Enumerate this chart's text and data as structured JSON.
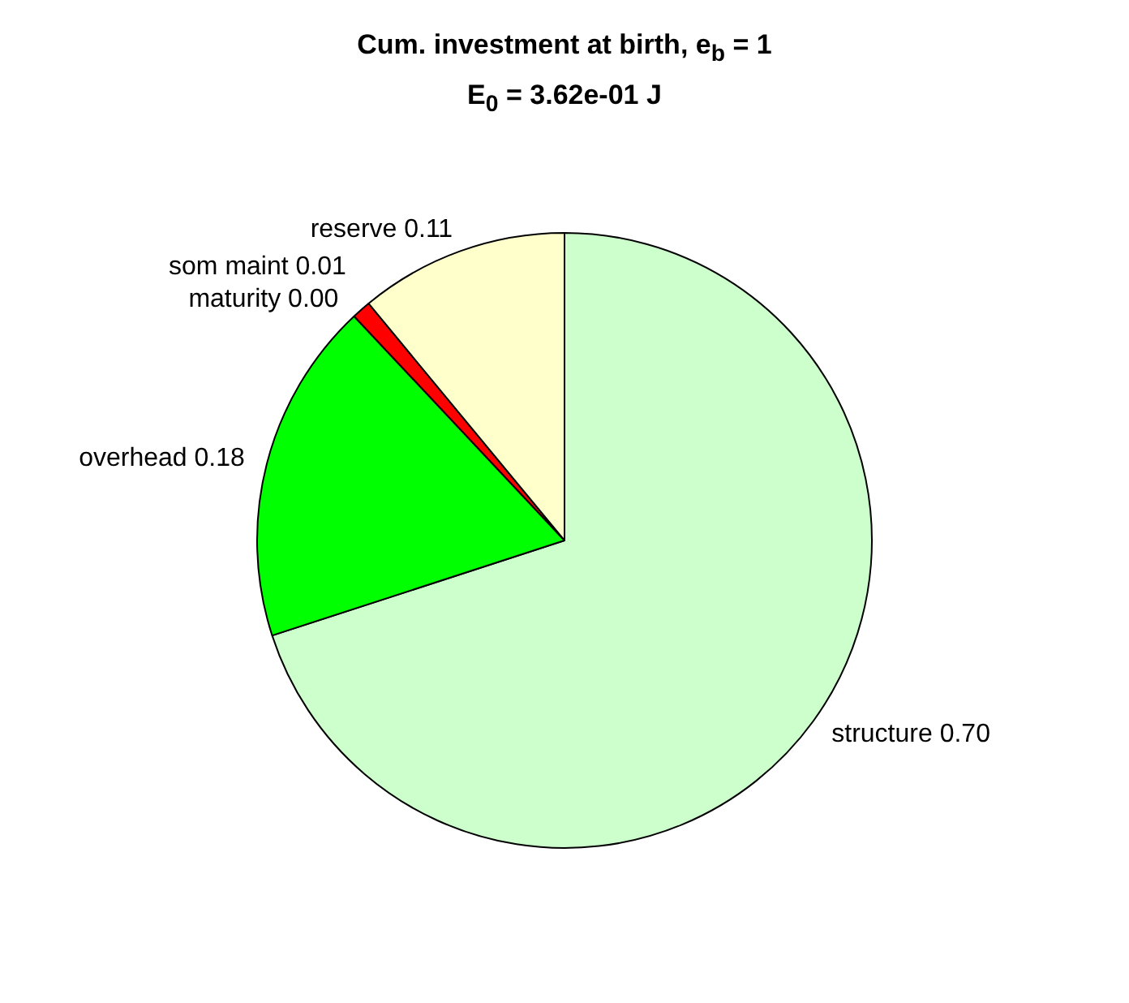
{
  "chart_data": {
    "type": "pie",
    "title": "Cum. investment at birth, e$_{b}$ = 1",
    "subtitle": "E$_{0}$ = 3.62e-01 J",
    "categories": [
      "structure",
      "overhead",
      "maturity",
      "som maint",
      "reserve"
    ],
    "values": [
      0.7,
      0.18,
      0.0,
      0.01,
      0.11
    ],
    "colors": [
      "#ccffcc",
      "#00ff00",
      "#000080",
      "#ff0000",
      "#ffffcc"
    ],
    "value_labels": [
      "0.70",
      "0.18",
      "0.00",
      "0.01",
      "0.11"
    ],
    "legend": false
  }
}
